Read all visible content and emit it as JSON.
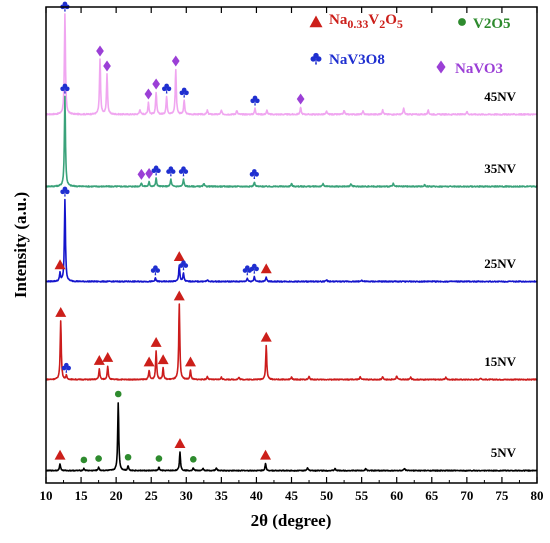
{
  "chart_data": {
    "type": "line",
    "xlabel": "2θ (degree)",
    "ylabel": "Intensity (a.u.)",
    "xlim": [
      10,
      80
    ],
    "x_ticks": [
      10,
      15,
      20,
      25,
      30,
      35,
      40,
      45,
      50,
      55,
      60,
      65,
      70,
      75,
      80
    ],
    "grid": false,
    "legend_position": "top-right",
    "legend": [
      {
        "key": "na033v2o5",
        "label": "Na0.33V2O5",
        "color": "#cc1f1a",
        "marker": "triangle"
      },
      {
        "key": "v2o5",
        "label": "V2O5",
        "color": "#2e8b2e",
        "marker": "circle"
      },
      {
        "key": "nav3o8",
        "label": "NaV3O8",
        "color": "#1f2fd0",
        "marker": "club"
      },
      {
        "key": "navo3",
        "label": "NaVO3",
        "color": "#9b3fd6",
        "marker": "diamond"
      }
    ],
    "series": [
      {
        "name": "45NV",
        "color": "#f0a6f0",
        "offset": 4,
        "scale": 1.0,
        "peaks": [
          {
            "x": 12.7,
            "h": 1.0,
            "phase": "nav3o8"
          },
          {
            "x": 17.7,
            "h": 0.55,
            "phase": "navo3"
          },
          {
            "x": 18.7,
            "h": 0.4,
            "phase": "navo3"
          },
          {
            "x": 24.6,
            "h": 0.12,
            "phase": "navo3"
          },
          {
            "x": 25.7,
            "h": 0.22,
            "phase": "navo3"
          },
          {
            "x": 27.2,
            "h": 0.18,
            "phase": "nav3o8"
          },
          {
            "x": 28.5,
            "h": 0.45,
            "phase": "navo3"
          },
          {
            "x": 29.7,
            "h": 0.14,
            "phase": "nav3o8"
          },
          {
            "x": 39.8,
            "h": 0.06,
            "phase": "nav3o8"
          },
          {
            "x": 46.3,
            "h": 0.07,
            "phase": "navo3"
          },
          {
            "x": 23.4,
            "h": 0.05
          },
          {
            "x": 33.0,
            "h": 0.04
          },
          {
            "x": 35.0,
            "h": 0.04
          },
          {
            "x": 37.2,
            "h": 0.04
          },
          {
            "x": 41.5,
            "h": 0.04
          },
          {
            "x": 50.0,
            "h": 0.03
          },
          {
            "x": 52.5,
            "h": 0.04
          },
          {
            "x": 55.2,
            "h": 0.03
          },
          {
            "x": 58.0,
            "h": 0.05
          },
          {
            "x": 61.0,
            "h": 0.06
          },
          {
            "x": 64.5,
            "h": 0.04
          },
          {
            "x": 70.0,
            "h": 0.03
          }
        ]
      },
      {
        "name": "35NV",
        "color": "#3aa27a",
        "offset": 3,
        "scale": 1.0,
        "peaks": [
          {
            "x": 12.7,
            "h": 1.0,
            "phase": "nav3o8"
          },
          {
            "x": 23.6,
            "h": 0.04,
            "phase": "navo3"
          },
          {
            "x": 24.7,
            "h": 0.05,
            "phase": "navo3"
          },
          {
            "x": 25.7,
            "h": 0.09,
            "phase": "nav3o8"
          },
          {
            "x": 27.8,
            "h": 0.08,
            "phase": "nav3o8"
          },
          {
            "x": 29.6,
            "h": 0.08,
            "phase": "nav3o8"
          },
          {
            "x": 39.7,
            "h": 0.05,
            "phase": "nav3o8"
          },
          {
            "x": 32.5,
            "h": 0.03
          },
          {
            "x": 45.0,
            "h": 0.03
          },
          {
            "x": 49.5,
            "h": 0.03
          },
          {
            "x": 53.5,
            "h": 0.03
          },
          {
            "x": 59.5,
            "h": 0.03
          },
          {
            "x": 64.0,
            "h": 0.02
          }
        ]
      },
      {
        "name": "25NV",
        "color": "#1414cc",
        "offset": 2,
        "scale": 1.0,
        "peaks": [
          {
            "x": 12.0,
            "h": 0.1,
            "phase": "na033v2o5"
          },
          {
            "x": 12.7,
            "h": 1.0,
            "phase": "nav3o8"
          },
          {
            "x": 25.6,
            "h": 0.04,
            "phase": "nav3o8"
          },
          {
            "x": 29.0,
            "h": 0.2,
            "phase": "na033v2o5"
          },
          {
            "x": 29.6,
            "h": 0.1,
            "phase": "nav3o8"
          },
          {
            "x": 38.7,
            "h": 0.04,
            "phase": "nav3o8"
          },
          {
            "x": 39.7,
            "h": 0.06,
            "phase": "nav3o8"
          },
          {
            "x": 41.4,
            "h": 0.05,
            "phase": "na033v2o5"
          },
          {
            "x": 33.0,
            "h": 0.02
          },
          {
            "x": 50.0,
            "h": 0.02
          },
          {
            "x": 55.0,
            "h": 0.02
          }
        ]
      },
      {
        "name": "15NV",
        "color": "#cc1c1c",
        "offset": 1,
        "scale": 1.0,
        "peaks": [
          {
            "x": 12.1,
            "h": 0.78,
            "phase": "na033v2o5"
          },
          {
            "x": 12.9,
            "h": 0.05,
            "phase": "nav3o8"
          },
          {
            "x": 17.6,
            "h": 0.14,
            "phase": "na033v2o5"
          },
          {
            "x": 18.8,
            "h": 0.18,
            "phase": "na033v2o5"
          },
          {
            "x": 24.7,
            "h": 0.12,
            "phase": "na033v2o5"
          },
          {
            "x": 25.7,
            "h": 0.38,
            "phase": "na033v2o5"
          },
          {
            "x": 26.7,
            "h": 0.15,
            "phase": "na033v2o5"
          },
          {
            "x": 29.0,
            "h": 1.0,
            "phase": "na033v2o5"
          },
          {
            "x": 30.6,
            "h": 0.12,
            "phase": "na033v2o5"
          },
          {
            "x": 41.4,
            "h": 0.45,
            "phase": "na033v2o5"
          },
          {
            "x": 33.0,
            "h": 0.04
          },
          {
            "x": 35.0,
            "h": 0.03
          },
          {
            "x": 37.5,
            "h": 0.03
          },
          {
            "x": 45.0,
            "h": 0.03
          },
          {
            "x": 47.5,
            "h": 0.04
          },
          {
            "x": 54.8,
            "h": 0.04
          },
          {
            "x": 58.0,
            "h": 0.04
          },
          {
            "x": 60.0,
            "h": 0.05
          },
          {
            "x": 62.0,
            "h": 0.03
          },
          {
            "x": 67.0,
            "h": 0.03
          },
          {
            "x": 72.0,
            "h": 0.02
          }
        ]
      },
      {
        "name": "5NV",
        "color": "#000000",
        "offset": 0,
        "scale": 1.0,
        "peaks": [
          {
            "x": 12.0,
            "h": 0.1,
            "phase": "na033v2o5"
          },
          {
            "x": 15.4,
            "h": 0.03,
            "phase": "v2o5"
          },
          {
            "x": 17.5,
            "h": 0.05,
            "phase": "v2o5"
          },
          {
            "x": 20.3,
            "h": 1.0,
            "phase": "v2o5"
          },
          {
            "x": 21.7,
            "h": 0.07,
            "phase": "v2o5"
          },
          {
            "x": 26.1,
            "h": 0.05,
            "phase": "v2o5"
          },
          {
            "x": 29.1,
            "h": 0.27,
            "phase": "na033v2o5"
          },
          {
            "x": 31.0,
            "h": 0.04,
            "phase": "v2o5"
          },
          {
            "x": 41.3,
            "h": 0.1,
            "phase": "na033v2o5"
          },
          {
            "x": 32.4,
            "h": 0.03
          },
          {
            "x": 34.3,
            "h": 0.04
          },
          {
            "x": 47.3,
            "h": 0.04
          },
          {
            "x": 51.2,
            "h": 0.03
          },
          {
            "x": 55.6,
            "h": 0.03
          },
          {
            "x": 61.1,
            "h": 0.03
          }
        ]
      }
    ]
  }
}
